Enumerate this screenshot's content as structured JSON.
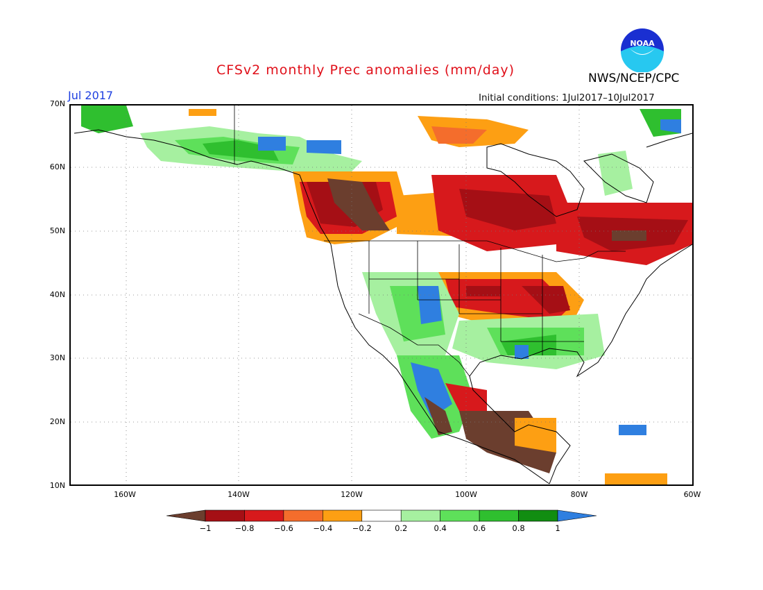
{
  "title": "CFSv2 monthly Prec anomalies (mm/day)",
  "month": "Jul 2017",
  "initial_conditions": "Initial conditions:  1Jul2017–10Jul2017",
  "org": "NWS/NCEP/CPC",
  "logo_text": "NOAA",
  "lat_labels": [
    "70N",
    "60N",
    "50N",
    "40N",
    "30N",
    "20N",
    "10N"
  ],
  "lon_labels": [
    "160W",
    "140W",
    "120W",
    "100W",
    "80W",
    "60W"
  ],
  "colorbar": {
    "labels": [
      "−1",
      "−0.8",
      "−0.6",
      "−0.4",
      "−0.2",
      "0.2",
      "0.4",
      "0.6",
      "0.8",
      "1"
    ],
    "colors": [
      "#6b3e2e",
      "#a50f15",
      "#d7191c",
      "#f46d2c",
      "#fd9f13",
      "#ffffff",
      "#a6f0a0",
      "#5ee05a",
      "#2fbf2f",
      "#118d11",
      "#2f7fe0"
    ]
  }
}
